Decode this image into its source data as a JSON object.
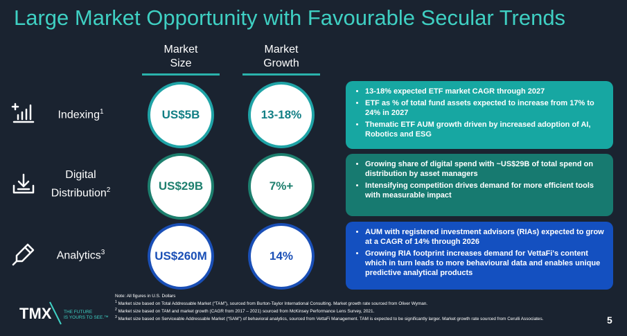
{
  "title": "Large Market Opportunity with Favourable Secular Trends",
  "columns": {
    "size": [
      "Market",
      "Size"
    ],
    "growth": [
      "Market",
      "Growth"
    ]
  },
  "rows": [
    {
      "label_lines": [
        "Indexing"
      ],
      "sup": "1",
      "icon": "bar-chart-growth-icon",
      "size": "US$5B",
      "growth": "13-18%",
      "bullets": [
        "13-18% expected ETF market CAGR through 2027",
        "ETF as % of total fund assets expected to increase from 17% to 24% in 2027",
        "Thematic ETF AUM growth driven by increased adoption of AI, Robotics and ESG"
      ]
    },
    {
      "label_lines": [
        "Digital",
        "Distribution"
      ],
      "sup": "2",
      "icon": "download-tray-icon",
      "size": "US$29B",
      "growth": "7%+",
      "bullets": [
        "Growing share of digital spend with ~US$29B of total spend on distribution by asset managers",
        "Intensifying competition drives demand for more efficient tools with measurable impact"
      ]
    },
    {
      "label_lines": [
        "Analytics"
      ],
      "sup": "3",
      "icon": "pen-tool-icon",
      "size": "US$260M",
      "growth": "14%",
      "bullets": [
        "AUM with registered investment advisors (RIAs) expected to grow at a CAGR of 14% through 2026",
        "Growing RIA footprint increases demand for VettaFi's content which in turn leads to more behavioural data and enables unique predictive analytical products"
      ]
    }
  ],
  "notes": {
    "intro": "Note: All figures in U.S. Dollars",
    "items": [
      {
        "num": "1",
        "text": "Market size based on Total Addressable Market (“TAM”), sourced from Burton-Taylor International Consulting. Market growth rate sourced from Oliver Wyman."
      },
      {
        "num": "2",
        "text": "Market size based on TAM and market growth (CAGR from 2017 – 2021) sourced from McKinsey Performance Lens Survey, 2021."
      },
      {
        "num": "3",
        "text": "Market size based on Serviceable Addressable Market (“SAM”) of behavioral analytics, sourced from VettaFi Management. TAM is expected to be significantly larger. Market growth rate sourced from Cerulli Associates."
      }
    ]
  },
  "logo": {
    "name": "TMX",
    "tagline_lines": [
      "THE FUTURE",
      "IS YOURS TO SEE.™"
    ]
  },
  "page_number": "5",
  "colors": {
    "background": "#1a2330",
    "title": "#3fd0c3",
    "teal": "#17a7a2",
    "green": "#177a70",
    "blue": "#1450c0"
  }
}
